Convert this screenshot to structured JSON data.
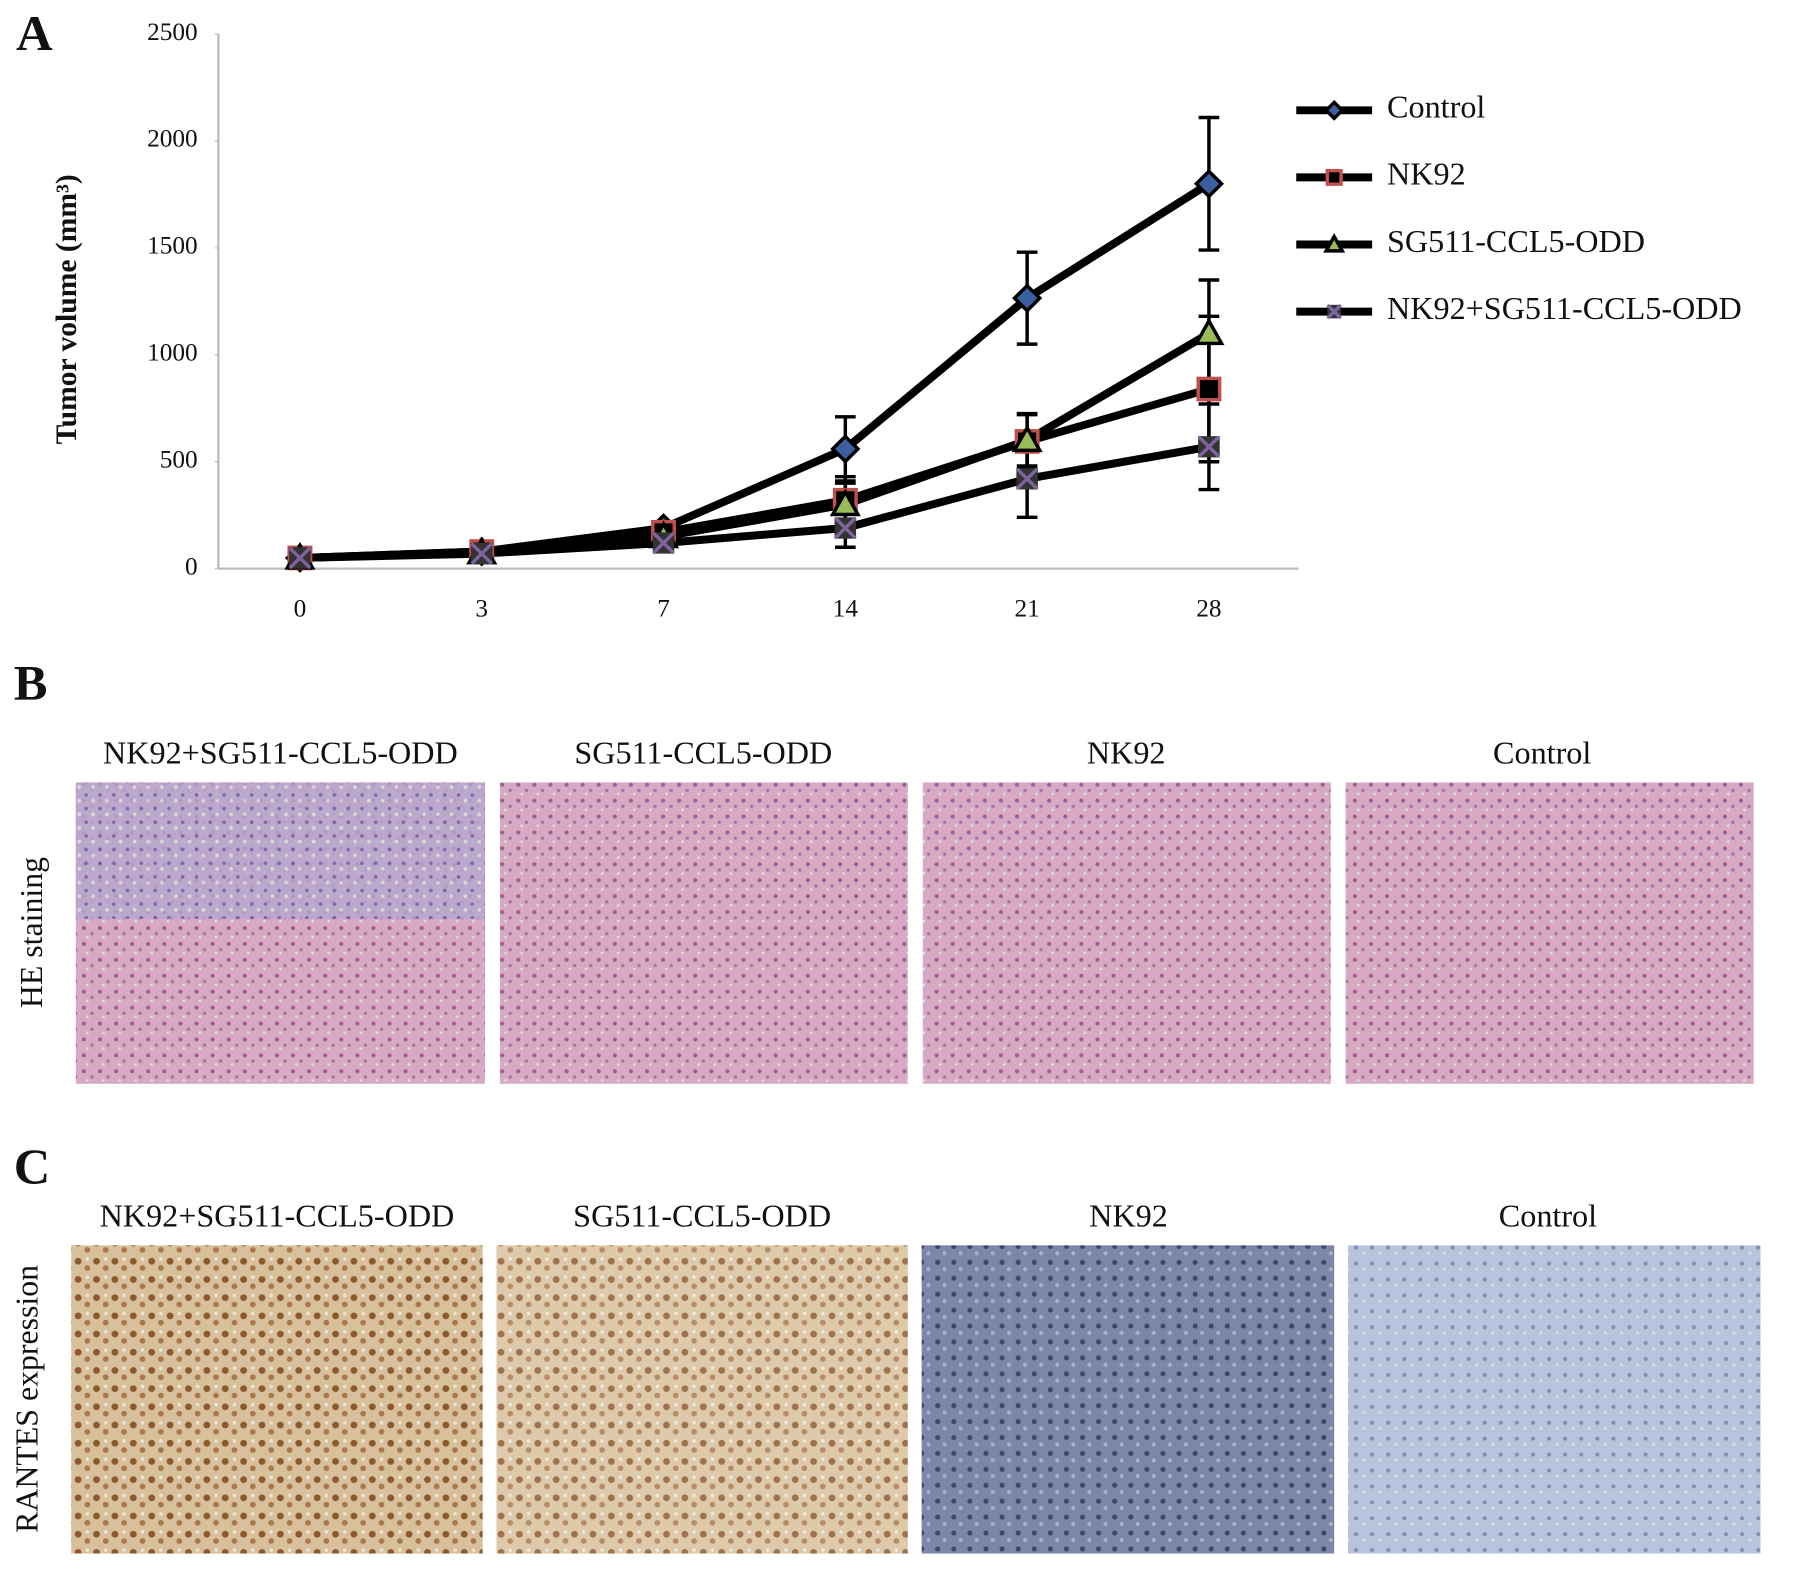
{
  "chart_data": {
    "type": "line",
    "panel_label": "A",
    "y_label": "Tumor volume (mm³)",
    "categories": [
      "0",
      "3",
      "7",
      "14",
      "21",
      "28"
    ],
    "ylim": [
      0,
      2500
    ],
    "yticks": [
      0,
      500,
      1000,
      1500,
      2000,
      2500
    ],
    "grid": false,
    "legend": "right",
    "series": [
      {
        "name": "Control",
        "color": "#000000",
        "marker": "diamond",
        "marker_color": "#3b5f9e",
        "values": [
          50,
          80,
          190,
          560,
          1265,
          1800
        ],
        "errors": [
          5,
          10,
          20,
          150,
          215,
          310
        ]
      },
      {
        "name": "NK92",
        "color": "#000000",
        "marker": "square",
        "marker_color": "#c0504d",
        "values": [
          50,
          80,
          170,
          320,
          595,
          840
        ],
        "errors": [
          5,
          10,
          20,
          110,
          130,
          340
        ]
      },
      {
        "name": "SG511-CCL5-ODD",
        "color": "#000000",
        "marker": "triangle",
        "marker_color": "#9bbb59",
        "values": [
          50,
          75,
          150,
          300,
          600,
          1100
        ],
        "errors": [
          5,
          10,
          20,
          100,
          120,
          250
        ]
      },
      {
        "name": "NK92+SG511-CCL5-ODD",
        "color": "#000000",
        "marker": "x",
        "marker_color": "#7e649e",
        "values": [
          50,
          70,
          120,
          190,
          420,
          570
        ],
        "errors": [
          5,
          10,
          20,
          90,
          180,
          200
        ]
      }
    ]
  },
  "image_panels": [
    {
      "label": "B",
      "row_label": "HE staining",
      "titles": [
        "NK92+SG511-CCL5-ODD",
        "SG511-CCL5-ODD",
        "NK92",
        "Control"
      ]
    },
    {
      "label": "C",
      "row_label": "RANTES expression",
      "titles": [
        "NK92+SG511-CCL5-ODD",
        "SG511-CCL5-ODD",
        "NK92",
        "Control"
      ]
    }
  ]
}
